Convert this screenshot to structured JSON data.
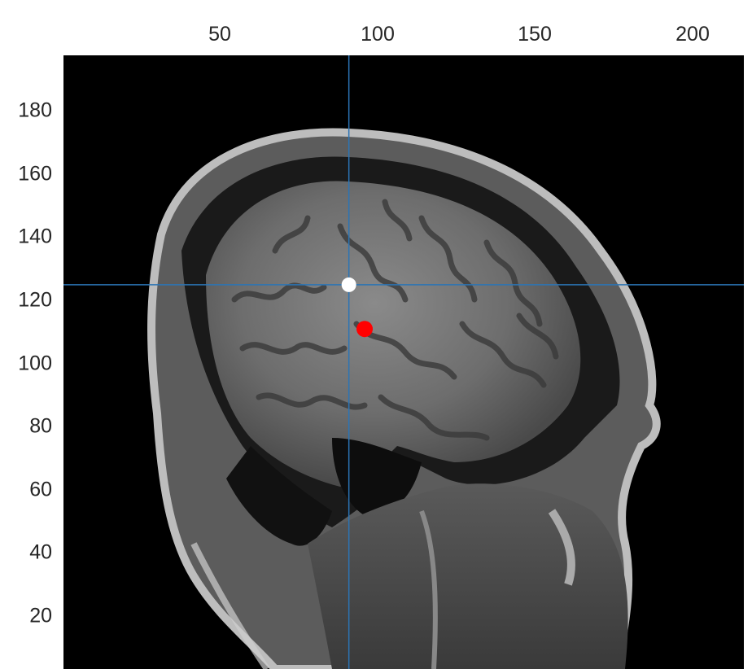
{
  "figure": {
    "x_ticks": [
      "50",
      "100",
      "150",
      "200"
    ],
    "y_ticks": [
      "20",
      "40",
      "60",
      "80",
      "100",
      "120",
      "140",
      "160",
      "180"
    ],
    "image": {
      "description_icon": "mri-sagittal-brain-slice",
      "colormap": "gray",
      "background": "#000000"
    },
    "crosshair": {
      "x": 91,
      "y": 125,
      "color": "#2b74b5"
    },
    "markers": [
      {
        "name": "current-point",
        "x": 91,
        "y": 125,
        "color": "#ffffff"
      },
      {
        "name": "target-point",
        "x": 96,
        "y": 111,
        "color": "#ff0000"
      }
    ],
    "axes": {
      "xlim": [
        1,
        218
      ],
      "ylim": [
        1,
        196
      ],
      "x_reversed": false,
      "y_reversed": true
    }
  }
}
